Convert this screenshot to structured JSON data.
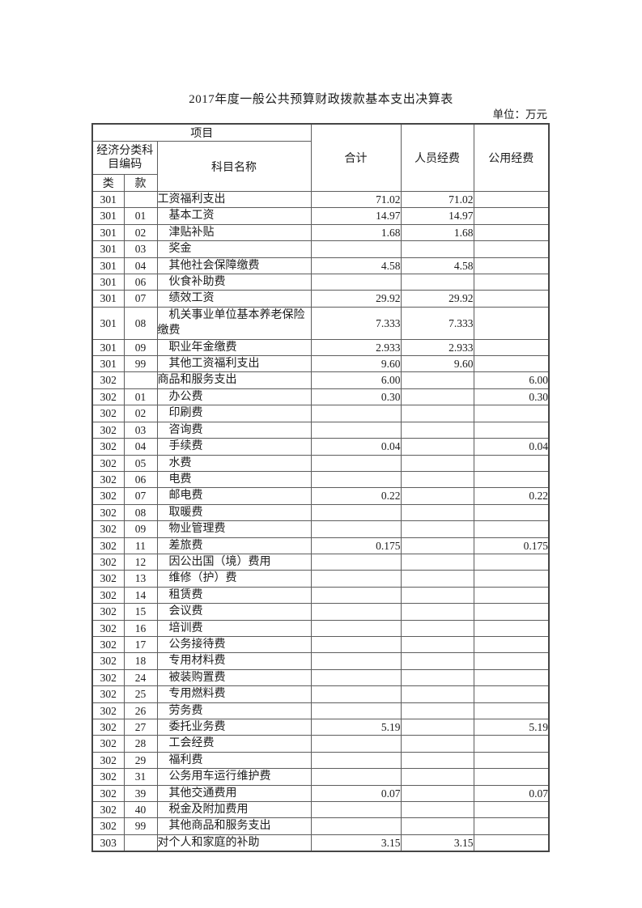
{
  "page": {
    "title": "2017年度一般公共预算财政拨款基本支出决算表",
    "unit_label": "单位：万元"
  },
  "table": {
    "header": {
      "project": "项目",
      "code_group": "经济分类科目编码",
      "subject_name": "科目名称",
      "cls": "类",
      "sec": "款",
      "total": "合计",
      "personnel": "人员经费",
      "public": "公用经费"
    },
    "rows": [
      {
        "cls": "301",
        "sec": "",
        "name": "工资福利支出",
        "total": "71.02",
        "personnel": "71.02",
        "public": "",
        "sub": false
      },
      {
        "cls": "301",
        "sec": "01",
        "name": "基本工资",
        "total": "14.97",
        "personnel": "14.97",
        "public": "",
        "sub": true
      },
      {
        "cls": "301",
        "sec": "02",
        "name": "津贴补贴",
        "total": "1.68",
        "personnel": "1.68",
        "public": "",
        "sub": true
      },
      {
        "cls": "301",
        "sec": "03",
        "name": "奖金",
        "total": "",
        "personnel": "",
        "public": "",
        "sub": true
      },
      {
        "cls": "301",
        "sec": "04",
        "name": "其他社会保障缴费",
        "total": "4.58",
        "personnel": "4.58",
        "public": "",
        "sub": true
      },
      {
        "cls": "301",
        "sec": "06",
        "name": "伙食补助费",
        "total": "",
        "personnel": "",
        "public": "",
        "sub": true
      },
      {
        "cls": "301",
        "sec": "07",
        "name": "绩效工资",
        "total": "29.92",
        "personnel": "29.92",
        "public": "",
        "sub": true
      },
      {
        "cls": "301",
        "sec": "08",
        "name": "机关事业单位基本养老保险缴费",
        "total": "7.333",
        "personnel": "7.333",
        "public": "",
        "sub": true
      },
      {
        "cls": "301",
        "sec": "09",
        "name": "职业年金缴费",
        "total": "2.933",
        "personnel": "2.933",
        "public": "",
        "sub": true
      },
      {
        "cls": "301",
        "sec": "99",
        "name": "其他工资福利支出",
        "total": "9.60",
        "personnel": "9.60",
        "public": "",
        "sub": true
      },
      {
        "cls": "302",
        "sec": "",
        "name": "商品和服务支出",
        "total": "6.00",
        "personnel": "",
        "public": "6.00",
        "sub": false
      },
      {
        "cls": "302",
        "sec": "01",
        "name": "办公费",
        "total": "0.30",
        "personnel": "",
        "public": "0.30",
        "sub": true
      },
      {
        "cls": "302",
        "sec": "02",
        "name": "印刷费",
        "total": "",
        "personnel": "",
        "public": "",
        "sub": true
      },
      {
        "cls": "302",
        "sec": "03",
        "name": "咨询费",
        "total": "",
        "personnel": "",
        "public": "",
        "sub": true
      },
      {
        "cls": "302",
        "sec": "04",
        "name": "手续费",
        "total": "0.04",
        "personnel": "",
        "public": "0.04",
        "sub": true
      },
      {
        "cls": "302",
        "sec": "05",
        "name": "水费",
        "total": "",
        "personnel": "",
        "public": "",
        "sub": true
      },
      {
        "cls": "302",
        "sec": "06",
        "name": "电费",
        "total": "",
        "personnel": "",
        "public": "",
        "sub": true
      },
      {
        "cls": "302",
        "sec": "07",
        "name": "邮电费",
        "total": "0.22",
        "personnel": "",
        "public": "0.22",
        "sub": true
      },
      {
        "cls": "302",
        "sec": "08",
        "name": "取暖费",
        "total": "",
        "personnel": "",
        "public": "",
        "sub": true
      },
      {
        "cls": "302",
        "sec": "09",
        "name": "物业管理费",
        "total": "",
        "personnel": "",
        "public": "",
        "sub": true
      },
      {
        "cls": "302",
        "sec": "11",
        "name": "差旅费",
        "total": "0.175",
        "personnel": "",
        "public": "0.175",
        "sub": true
      },
      {
        "cls": "302",
        "sec": "12",
        "name": "因公出国（境）费用",
        "total": "",
        "personnel": "",
        "public": "",
        "sub": true
      },
      {
        "cls": "302",
        "sec": "13",
        "name": "维修（护）费",
        "total": "",
        "personnel": "",
        "public": "",
        "sub": true
      },
      {
        "cls": "302",
        "sec": "14",
        "name": "租赁费",
        "total": "",
        "personnel": "",
        "public": "",
        "sub": true
      },
      {
        "cls": "302",
        "sec": "15",
        "name": "会议费",
        "total": "",
        "personnel": "",
        "public": "",
        "sub": true
      },
      {
        "cls": "302",
        "sec": "16",
        "name": "培训费",
        "total": "",
        "personnel": "",
        "public": "",
        "sub": true
      },
      {
        "cls": "302",
        "sec": "17",
        "name": "公务接待费",
        "total": "",
        "personnel": "",
        "public": "",
        "sub": true
      },
      {
        "cls": "302",
        "sec": "18",
        "name": "专用材料费",
        "total": "",
        "personnel": "",
        "public": "",
        "sub": true
      },
      {
        "cls": "302",
        "sec": "24",
        "name": "被装购置费",
        "total": "",
        "personnel": "",
        "public": "",
        "sub": true
      },
      {
        "cls": "302",
        "sec": "25",
        "name": "专用燃料费",
        "total": "",
        "personnel": "",
        "public": "",
        "sub": true
      },
      {
        "cls": "302",
        "sec": "26",
        "name": "劳务费",
        "total": "",
        "personnel": "",
        "public": "",
        "sub": true
      },
      {
        "cls": "302",
        "sec": "27",
        "name": "委托业务费",
        "total": "5.19",
        "personnel": "",
        "public": "5.19",
        "sub": true
      },
      {
        "cls": "302",
        "sec": "28",
        "name": "工会经费",
        "total": "",
        "personnel": "",
        "public": "",
        "sub": true
      },
      {
        "cls": "302",
        "sec": "29",
        "name": "福利费",
        "total": "",
        "personnel": "",
        "public": "",
        "sub": true
      },
      {
        "cls": "302",
        "sec": "31",
        "name": "公务用车运行维护费",
        "total": "",
        "personnel": "",
        "public": "",
        "sub": true
      },
      {
        "cls": "302",
        "sec": "39",
        "name": "其他交通费用",
        "total": "0.07",
        "personnel": "",
        "public": "0.07",
        "sub": true
      },
      {
        "cls": "302",
        "sec": "40",
        "name": "税金及附加费用",
        "total": "",
        "personnel": "",
        "public": "",
        "sub": true
      },
      {
        "cls": "302",
        "sec": "99",
        "name": "其他商品和服务支出",
        "total": "",
        "personnel": "",
        "public": "",
        "sub": true
      },
      {
        "cls": "303",
        "sec": "",
        "name": "对个人和家庭的补助",
        "total": "3.15",
        "personnel": "3.15",
        "public": "",
        "sub": false
      }
    ]
  }
}
